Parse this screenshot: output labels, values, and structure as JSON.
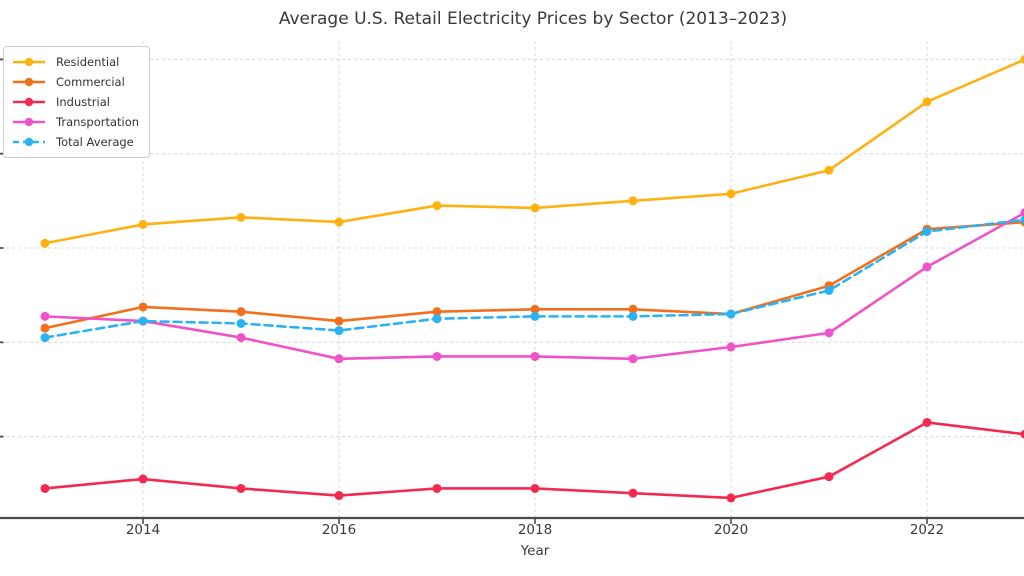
{
  "chart_data": {
    "type": "line",
    "title": "Average U.S. Retail Electricity Prices by Sector (2013–2023)",
    "xlabel": "Year",
    "ylabel": "",
    "x": [
      2013,
      2014,
      2015,
      2016,
      2017,
      2018,
      2019,
      2020,
      2021,
      2022,
      2023
    ],
    "x_tick_labels": [
      "2014",
      "2016",
      "2018",
      "2020",
      "2022"
    ],
    "y_gridline_values": [
      8,
      10,
      12,
      14,
      16
    ],
    "xlim_visible": [
      2012.55,
      2023
    ],
    "ylim_visible": [
      6.3,
      17.25
    ],
    "grid": true,
    "legend_position": "upper-left",
    "y_axis_tick_labels_cropped_out": true,
    "series": [
      {
        "name": "Residential",
        "color": "#FFB112",
        "line_style": "solid",
        "values": [
          12.1,
          12.5,
          12.65,
          12.55,
          12.9,
          12.85,
          13.0,
          13.15,
          13.65,
          15.1,
          16.0
        ]
      },
      {
        "name": "Commercial",
        "color": "#F0711D",
        "line_style": "solid",
        "values": [
          10.3,
          10.75,
          10.65,
          10.45,
          10.65,
          10.7,
          10.7,
          10.6,
          11.2,
          12.4,
          12.55
        ]
      },
      {
        "name": "Industrial",
        "color": "#F22A50",
        "line_style": "solid",
        "values": [
          6.9,
          7.1,
          6.9,
          6.75,
          6.9,
          6.9,
          6.8,
          6.7,
          7.15,
          8.3,
          8.05
        ]
      },
      {
        "name": "Transportation",
        "color": "#F052C8",
        "line_style": "solid",
        "values": [
          10.55,
          10.45,
          10.1,
          9.65,
          9.7,
          9.7,
          9.65,
          9.9,
          10.2,
          11.6,
          12.75
        ]
      },
      {
        "name": "Total Average",
        "color": "#2AB2F2",
        "line_style": "dashed",
        "values": [
          10.1,
          10.45,
          10.4,
          10.25,
          10.5,
          10.55,
          10.55,
          10.6,
          11.1,
          12.35,
          12.6
        ]
      }
    ]
  },
  "colors": {
    "background": "#FFFFFF",
    "gridline": "#DBDBDB",
    "axis_spine": "#4B4B4B",
    "text": "#3A3A3A"
  }
}
